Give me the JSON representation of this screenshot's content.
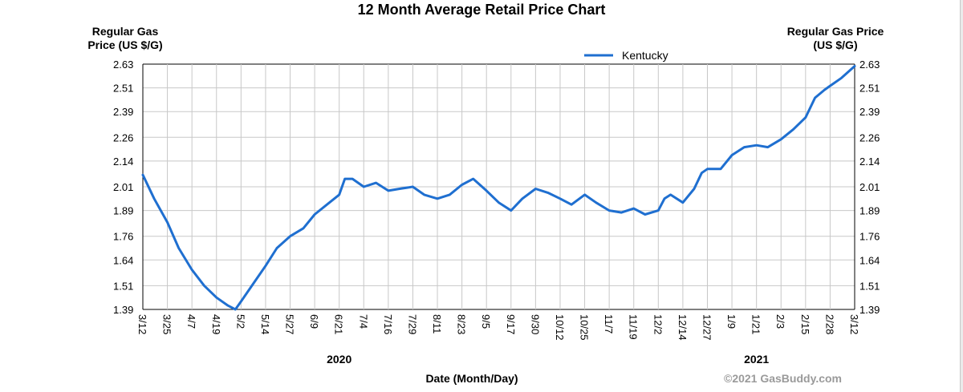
{
  "chart_data": {
    "type": "line",
    "title": "12 Month Average Retail Price Chart",
    "ylabel_left": "Regular Gas Price (US $/G)",
    "ylabel_right": "Regular Gas Price (US $/G)",
    "xlabel": "Date (Month/Day)",
    "year_labels": [
      {
        "label": "2020",
        "at": "6/21"
      },
      {
        "label": "2021",
        "at": "1/21"
      }
    ],
    "ylim": [
      1.39,
      2.63
    ],
    "y_ticks": [
      "1.39",
      "1.51",
      "1.64",
      "1.76",
      "1.89",
      "2.01",
      "2.14",
      "2.26",
      "2.39",
      "2.51",
      "2.63"
    ],
    "x_ticks": [
      "3/12",
      "3/25",
      "4/7",
      "4/19",
      "5/2",
      "5/14",
      "5/27",
      "6/9",
      "6/21",
      "7/4",
      "7/16",
      "7/29",
      "8/11",
      "8/23",
      "9/5",
      "9/17",
      "9/30",
      "10/12",
      "10/25",
      "11/7",
      "11/19",
      "12/2",
      "12/14",
      "12/27",
      "1/9",
      "1/21",
      "2/3",
      "2/15",
      "2/28",
      "3/12"
    ],
    "grid": true,
    "legend_position": "top-right",
    "series": [
      {
        "name": "Kentucky",
        "color": "#1f6fd0",
        "points": [
          [
            "3/12",
            2.07
          ],
          [
            "3/18",
            1.95
          ],
          [
            "3/25",
            1.83
          ],
          [
            "3/31",
            1.7
          ],
          [
            "4/7",
            1.59
          ],
          [
            "4/13",
            1.51
          ],
          [
            "4/19",
            1.45
          ],
          [
            "4/25",
            1.41
          ],
          [
            "4/29",
            1.39
          ],
          [
            "5/2",
            1.43
          ],
          [
            "5/8",
            1.52
          ],
          [
            "5/14",
            1.61
          ],
          [
            "5/20",
            1.7
          ],
          [
            "5/27",
            1.76
          ],
          [
            "6/3",
            1.8
          ],
          [
            "6/9",
            1.87
          ],
          [
            "6/15",
            1.92
          ],
          [
            "6/21",
            1.97
          ],
          [
            "6/24",
            2.05
          ],
          [
            "6/28",
            2.05
          ],
          [
            "7/4",
            2.01
          ],
          [
            "7/10",
            2.03
          ],
          [
            "7/16",
            1.99
          ],
          [
            "7/22",
            2.0
          ],
          [
            "7/29",
            2.01
          ],
          [
            "8/4",
            1.97
          ],
          [
            "8/11",
            1.95
          ],
          [
            "8/17",
            1.97
          ],
          [
            "8/23",
            2.02
          ],
          [
            "8/29",
            2.05
          ],
          [
            "9/5",
            1.99
          ],
          [
            "9/11",
            1.93
          ],
          [
            "9/17",
            1.89
          ],
          [
            "9/23",
            1.95
          ],
          [
            "9/30",
            2.0
          ],
          [
            "10/6",
            1.98
          ],
          [
            "10/12",
            1.95
          ],
          [
            "10/18",
            1.92
          ],
          [
            "10/25",
            1.97
          ],
          [
            "10/31",
            1.93
          ],
          [
            "11/7",
            1.89
          ],
          [
            "11/13",
            1.88
          ],
          [
            "11/19",
            1.9
          ],
          [
            "11/25",
            1.87
          ],
          [
            "12/2",
            1.89
          ],
          [
            "12/5",
            1.95
          ],
          [
            "12/8",
            1.97
          ],
          [
            "12/14",
            1.93
          ],
          [
            "12/20",
            2.0
          ],
          [
            "12/24",
            2.08
          ],
          [
            "12/27",
            2.1
          ],
          [
            "1/3",
            2.1
          ],
          [
            "1/9",
            2.17
          ],
          [
            "1/15",
            2.21
          ],
          [
            "1/21",
            2.22
          ],
          [
            "1/27",
            2.21
          ],
          [
            "2/3",
            2.25
          ],
          [
            "2/9",
            2.3
          ],
          [
            "2/15",
            2.36
          ],
          [
            "2/20",
            2.46
          ],
          [
            "2/25",
            2.5
          ],
          [
            "2/28",
            2.52
          ],
          [
            "3/5",
            2.56
          ],
          [
            "3/12",
            2.62
          ]
        ]
      }
    ],
    "footer": "©2021 GasBuddy.com"
  }
}
